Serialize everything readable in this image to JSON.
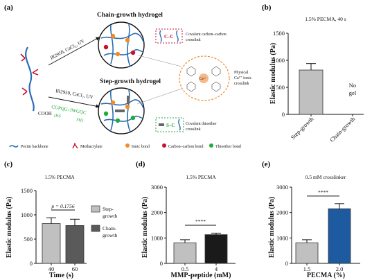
{
  "panels": {
    "a": "(a)",
    "b": "(b)",
    "c": "(c)",
    "d": "(d)",
    "e": "(e)"
  },
  "schematic": {
    "chain_title": "Chain-growth hydrogel",
    "step_title": "Step-growth hydrogel",
    "reagent_top": "IR2959, CaCl₂, UV",
    "reagent_bottom": "IR2959, CaCl₂, UV",
    "cooh": "COOH",
    "peptide_seq": "CGPQG↓IWGQC",
    "peptide_hs": "(HS",
    "peptide_sh": "SH)",
    "cc_label": "C–C",
    "sc_label": "S–C",
    "covalent_cc_line1": "Covalent carbon–carbon",
    "covalent_cc_line2": "crosslink",
    "physical_line1": "Physical",
    "physical_line2": "Ca²⁺ ionic",
    "physical_line3": "crosslink",
    "ca_label": "Ca²⁺",
    "covalent_te_line1": "Covalent thioether",
    "covalent_te_line2": "crosslink",
    "legend": [
      {
        "label": "Pectin backbone",
        "icon": "pectin-backbone-icon"
      },
      {
        "label": "Methacrylate",
        "icon": "methacrylate-icon"
      },
      {
        "label": "Ionic bond",
        "icon": "ionic-bond-icon"
      },
      {
        "label": "Carbon–carbon bond",
        "icon": "carbon-bond-icon"
      },
      {
        "label": "Thioether bond",
        "icon": "thioether-bond-icon"
      }
    ]
  },
  "colors": {
    "blue": "#2a6db5",
    "red": "#c8102e",
    "orange": "#f28c28",
    "green": "#1faa3c",
    "bar_light": "#c0c0c0",
    "bar_dark": "#5a5a5a",
    "bar_black": "#1a1a1a",
    "bar_navy": "#1e5aa0"
  },
  "chart_data": [
    {
      "id": "b",
      "type": "bar",
      "title": "1.5% PECMA, 40 s",
      "ylabel": "Elastic modulus (Pa)",
      "ylim": [
        0,
        1500
      ],
      "yticks": [
        0,
        500,
        1000,
        1500
      ],
      "categories": [
        "Step-growth",
        "Chain-growth"
      ],
      "values": [
        820,
        null
      ],
      "errors": [
        120,
        null
      ],
      "annotation": [
        "No",
        "gel"
      ]
    },
    {
      "id": "c",
      "type": "bar",
      "title": "1.5% PECMA",
      "ylabel": "Elastic modulus (Pa)",
      "xlabel": "Time (s)",
      "ylim": [
        0,
        1500
      ],
      "yticks": [
        0,
        500,
        1000,
        1500
      ],
      "categories": [
        "40",
        "60"
      ],
      "series": [
        {
          "name": "Step-growth"
        },
        {
          "name": "Chain-growth"
        }
      ],
      "legend_lines": [
        [
          "Step-",
          "growth"
        ],
        [
          "Chain-",
          "growth"
        ]
      ],
      "values": [
        820,
        780
      ],
      "errors": [
        120,
        130
      ],
      "annotation": "p = 0.1756"
    },
    {
      "id": "d",
      "type": "bar",
      "title": "1.5% PECMA",
      "ylabel": "Elastic modulus (Pa)",
      "xlabel": "MMP-peptide (mM)",
      "ylim": [
        0,
        3000
      ],
      "yticks": [
        0,
        1000,
        2000,
        3000
      ],
      "categories": [
        "0.5",
        "4"
      ],
      "values": [
        810,
        1130
      ],
      "errors": [
        120,
        60
      ],
      "annotation": "****"
    },
    {
      "id": "e",
      "type": "bar",
      "title": "0.5 mM crosslinker",
      "ylabel": "Elastic modulus (Pa)",
      "xlabel": "PECMA (%)",
      "ylim": [
        0,
        3000
      ],
      "yticks": [
        0,
        1000,
        2000,
        3000
      ],
      "categories": [
        "1.5",
        "2.0"
      ],
      "values": [
        810,
        2150
      ],
      "errors": [
        120,
        200
      ],
      "annotation": "****"
    }
  ]
}
